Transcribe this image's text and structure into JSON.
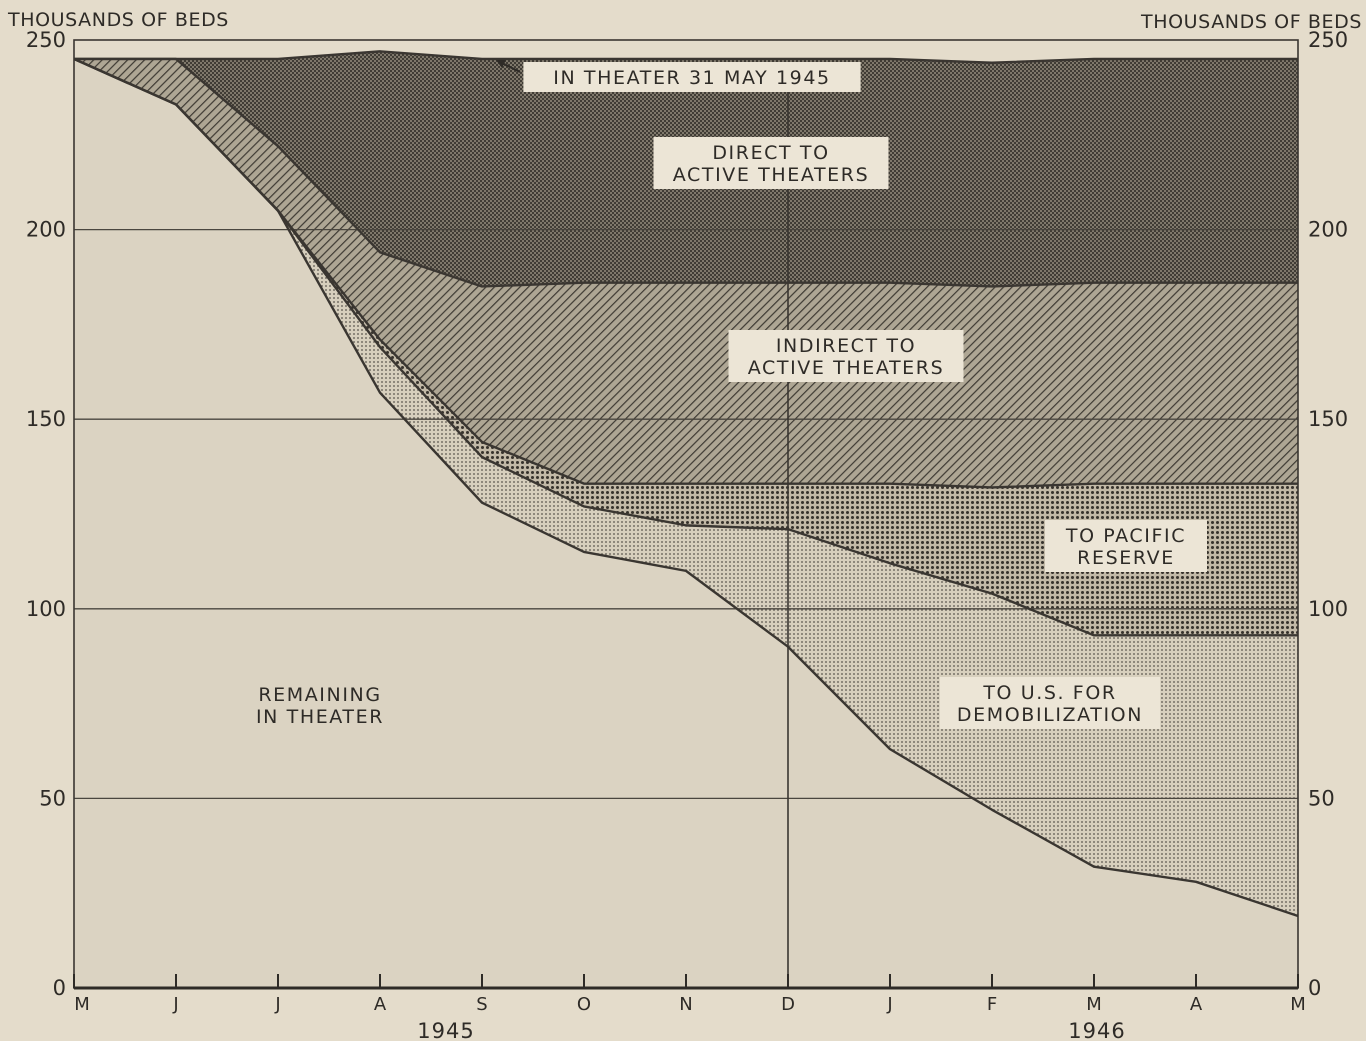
{
  "chart_data": {
    "type": "area",
    "stacked": true,
    "unit_label_left": "THOUSANDS OF BEDS",
    "unit_label_right": "THOUSANDS OF BEDS",
    "ylim": [
      0,
      250
    ],
    "yticks": [
      0,
      50,
      100,
      150,
      200,
      250
    ],
    "ytick_labels": [
      "0",
      "50",
      "100",
      "150",
      "200",
      "250"
    ],
    "x": [
      "M",
      "J",
      "J",
      "A",
      "S",
      "O",
      "N",
      "D",
      "J",
      "F",
      "M",
      "A",
      "M"
    ],
    "years": [
      {
        "label": "1945",
        "position": "under J-A-S (1945)"
      },
      {
        "label": "1946",
        "position": "under M-A (1946)"
      }
    ],
    "grid": "horizontal at 50, 100, 150, 200; vertical at December",
    "series": [
      {
        "name": "REMAINING IN THEATER",
        "pattern": "plain light",
        "values": [
          245,
          233,
          205,
          157,
          128,
          115,
          110,
          90,
          63,
          47,
          32,
          28,
          19
        ]
      },
      {
        "name": "TO U.S. FOR DEMOBILIZATION",
        "pattern": "fine dots",
        "values": [
          0,
          0,
          0,
          12,
          12,
          12,
          12,
          31,
          49,
          57,
          61,
          65,
          74
        ]
      },
      {
        "name": "TO PACIFIC RESERVE",
        "pattern": "coarse dots",
        "values": [
          0,
          0,
          0,
          2,
          4,
          6,
          11,
          12,
          21,
          28,
          40,
          40,
          40
        ]
      },
      {
        "name": "INDIRECT TO ACTIVE THEATERS",
        "pattern": "diagonal hatch",
        "values": [
          0,
          12,
          17,
          23,
          41,
          53,
          53,
          53,
          53,
          53,
          53,
          53,
          53
        ]
      },
      {
        "name": "DIRECT TO ACTIVE THEATERS",
        "pattern": "dark crosshatch",
        "values": [
          0,
          0,
          23,
          53,
          60,
          59,
          59,
          59,
          59,
          59,
          59,
          59,
          59
        ]
      }
    ],
    "annotations": [
      {
        "lines": [
          "IN THEATER 31 MAY 1945"
        ],
        "value": 245
      },
      {
        "lines": [
          "DIRECT TO",
          "ACTIVE THEATERS"
        ]
      },
      {
        "lines": [
          "INDIRECT TO",
          "ACTIVE THEATERS"
        ]
      },
      {
        "lines": [
          "TO PACIFIC",
          "RESERVE"
        ]
      },
      {
        "lines": [
          "TO U.S. FOR",
          "DEMOBILIZATION"
        ]
      },
      {
        "lines": [
          "REMAINING",
          "IN THEATER"
        ]
      }
    ]
  }
}
